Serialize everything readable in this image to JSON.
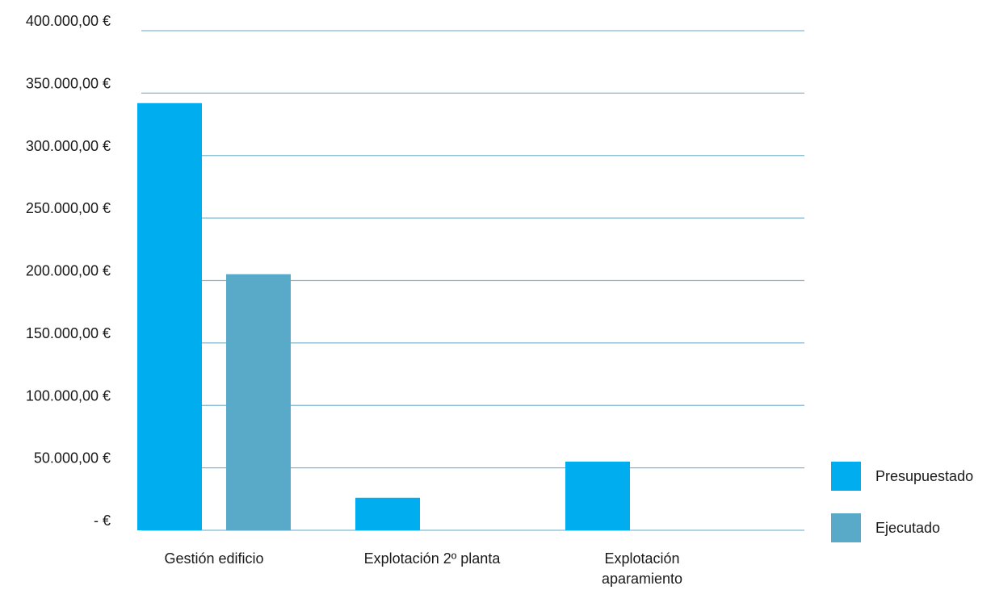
{
  "chart_data": {
    "type": "bar",
    "title": "",
    "xlabel": "",
    "ylabel": "",
    "ylim": [
      0,
      400000
    ],
    "grid": true,
    "legend_position": "right",
    "y_ticks": [
      {
        "value": 400000,
        "label": "400.000,00 €"
      },
      {
        "value": 350000,
        "label": "350.000,00 €"
      },
      {
        "value": 300000,
        "label": "300.000,00 €"
      },
      {
        "value": 250000,
        "label": "250.000,00 €"
      },
      {
        "value": 200000,
        "label": "200.000,00 €"
      },
      {
        "value": 150000,
        "label": "150.000,00 €"
      },
      {
        "value": 100000,
        "label": "100.000,00 €"
      },
      {
        "value": 50000,
        "label": "50.000,00 €"
      },
      {
        "value": 0,
        "label": "-  €"
      }
    ],
    "categories": [
      [
        "Gestión edificio"
      ],
      [
        "Explotación 2º planta"
      ],
      [
        "Explotación",
        "aparamiento"
      ]
    ],
    "series": [
      {
        "name": "Presupuestado",
        "color": "#00adef",
        "values": [
          342000,
          26000,
          55000
        ]
      },
      {
        "name": "Ejecutado",
        "color": "#59a9c8",
        "values": [
          205000,
          0,
          0
        ]
      }
    ]
  }
}
